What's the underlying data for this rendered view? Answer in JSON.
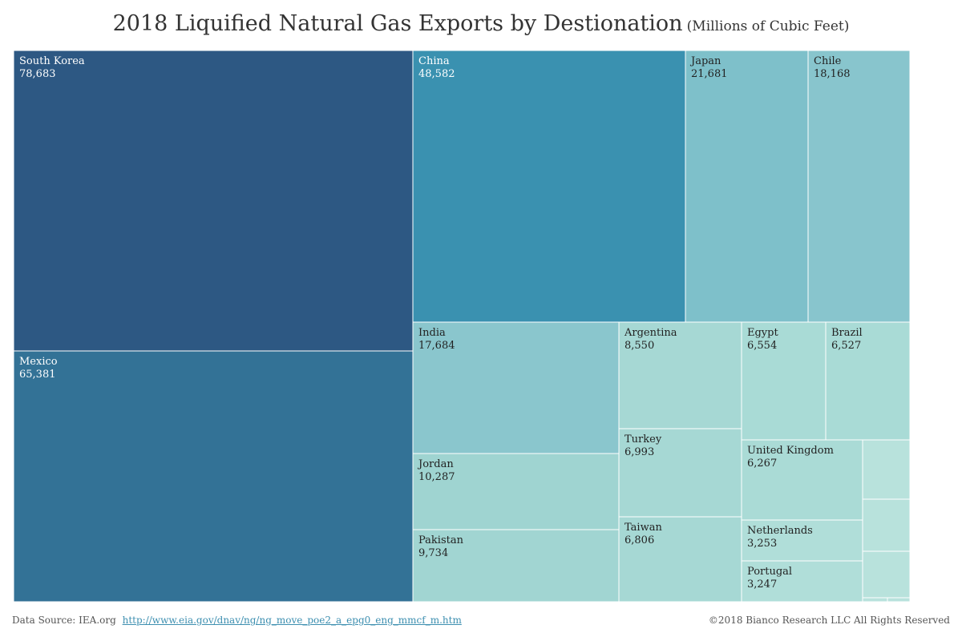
{
  "chart_data": {
    "type": "treemap",
    "title": "2018 Liquified Natural Gas Exports by Destionation",
    "subtitle": "(Millions of Cubic Feet)",
    "items": [
      {
        "name": "South Korea",
        "value": 78683,
        "label": "78,683",
        "color": "#2d5883"
      },
      {
        "name": "Mexico",
        "value": 65381,
        "label": "65,381",
        "color": "#337296"
      },
      {
        "name": "China",
        "value": 48582,
        "label": "48,582",
        "color": "#3a91b0"
      },
      {
        "name": "Japan",
        "value": 21681,
        "label": "21,681",
        "color": "#7ec0ca"
      },
      {
        "name": "Chile",
        "value": 18168,
        "label": "18,168",
        "color": "#88c5cd"
      },
      {
        "name": "India",
        "value": 17684,
        "label": "17,684",
        "color": "#8ac6cd"
      },
      {
        "name": "Argentina",
        "value": 8550,
        "label": "8,550",
        "color": "#a6d8d4"
      },
      {
        "name": "Egypt",
        "value": 6554,
        "label": "6,554",
        "color": "#a9dbd6"
      },
      {
        "name": "Brazil",
        "value": 6527,
        "label": "6,527",
        "color": "#a9dbd6"
      },
      {
        "name": "Jordan",
        "value": 10287,
        "label": "10,287",
        "color": "#9fd4d1"
      },
      {
        "name": "Turkey",
        "value": 6993,
        "label": "6,993",
        "color": "#a6d8d4"
      },
      {
        "name": "United Kingdom",
        "value": 6267,
        "label": "6,267",
        "color": "#aadbd6"
      },
      {
        "name": "Pakistan",
        "value": 9734,
        "label": "9,734",
        "color": "#a1d5d2"
      },
      {
        "name": "Taiwan",
        "value": 6806,
        "label": "6,806",
        "color": "#a6d8d4"
      },
      {
        "name": "Netherlands",
        "value": 3253,
        "label": "3,253",
        "color": "#b0ded9"
      },
      {
        "name": "Portugal",
        "value": 3247,
        "label": "3,247",
        "color": "#b0ded9"
      }
    ],
    "unlabeled_tiles": 5,
    "unlabeled_color": "#b8e2dc"
  },
  "footer": {
    "source_label": "Data Source: IEA.org",
    "source_link": "http://www.eia.gov/dnav/ng/ng_move_poe2_a_epg0_eng_mmcf_m.htm",
    "copyright": "©2018 Bianco Research LLC  All Rights Reserved"
  },
  "colors": {
    "label_dark_bg": "#ffffff",
    "label_light_bg": "#222222",
    "link": "#3d8fb0"
  }
}
